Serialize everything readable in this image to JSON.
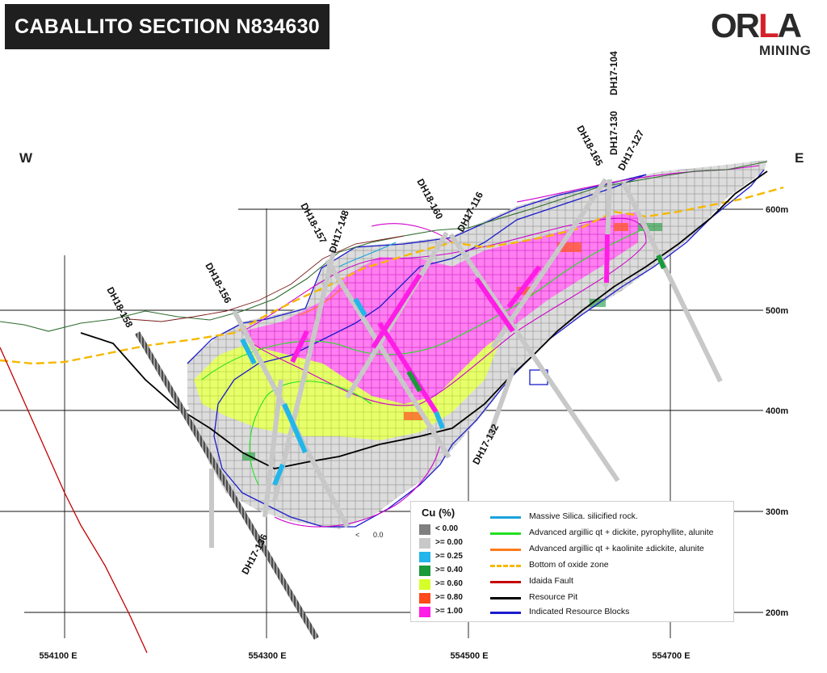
{
  "title": "CABALLITO SECTION N834630",
  "logo": {
    "main": "ORLA",
    "sub": "MINING",
    "accent_color": "#d4202a"
  },
  "compass": {
    "west": "W",
    "east": "E"
  },
  "elevation_labels": [
    "600m",
    "500m",
    "400m",
    "300m",
    "200m"
  ],
  "easting_labels": [
    "554100 E",
    "554300 E",
    "554500 E",
    "554700 E"
  ],
  "drillholes": [
    {
      "name": "DH18-158"
    },
    {
      "name": "DH18-156"
    },
    {
      "name": "DH18-157"
    },
    {
      "name": "DH17-148"
    },
    {
      "name": "DH18-160"
    },
    {
      "name": "DH17-116"
    },
    {
      "name": "DH18-165"
    },
    {
      "name": "DH17-130"
    },
    {
      "name": "DH17-104"
    },
    {
      "name": "DH17-127"
    },
    {
      "name": "DH17-136"
    },
    {
      "name": "DH17-132"
    }
  ],
  "stray_label": {
    "prefix": "<",
    "value": "0.0"
  },
  "legend": {
    "cu_title": "Cu (%)",
    "cu_classes": [
      {
        "label": "<   0.00",
        "color": "#7f7f7f"
      },
      {
        "label": ">= 0.00",
        "color": "#c8c8c8"
      },
      {
        "label": ">= 0.25",
        "color": "#22b6ea"
      },
      {
        "label": ">= 0.40",
        "color": "#1a9a3a"
      },
      {
        "label": ">= 0.60",
        "color": "#d6ff2a"
      },
      {
        "label": ">= 0.80",
        "color": "#ff4a1a"
      },
      {
        "label": ">= 1.00",
        "color": "#ff1ce6"
      }
    ],
    "lines": [
      {
        "label": "Massive Silica. silicified rock.",
        "color": "#1aa3dd",
        "style": "solid"
      },
      {
        "label": "Advanced argillic qt + dickite, pyrophyllite, alunite",
        "color": "#22e022",
        "style": "solid"
      },
      {
        "label": "Advanced argillic qt + kaolinite ±dickite, alunite",
        "color": "#ff7a1a",
        "style": "solid"
      },
      {
        "label": "Bottom of oxide zone",
        "color": "#f5b800",
        "style": "dashed"
      },
      {
        "label": "Idaida Fault",
        "color": "#c40000",
        "style": "solid"
      },
      {
        "label": "Resource Pit",
        "color": "#000000",
        "style": "solid"
      },
      {
        "label": "Indicated Resource Blocks",
        "color": "#1a1acc",
        "style": "solid"
      }
    ]
  }
}
